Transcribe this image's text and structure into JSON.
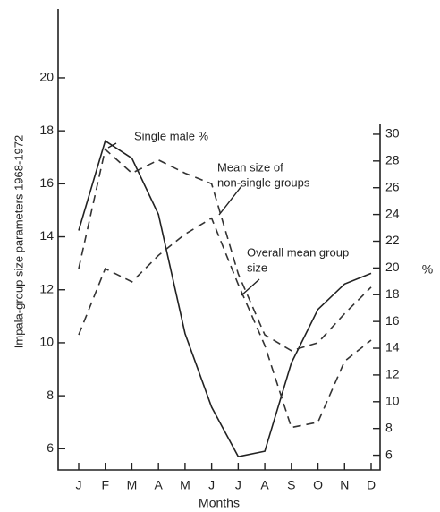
{
  "chart_data": {
    "type": "line",
    "x_label": "Months",
    "y_label": "Impala-group size parameters 1968-1972",
    "y2_label": "%",
    "categories": [
      "J",
      "F",
      "M",
      "A",
      "M",
      "J",
      "J",
      "A",
      "S",
      "O",
      "N",
      "D"
    ],
    "ylim": [
      5.2,
      22.6
    ],
    "yticks": [
      6,
      8,
      10,
      12,
      14,
      16,
      18,
      20
    ],
    "y2lim": [
      4.9,
      30.8
    ],
    "y2ticks": [
      6,
      8,
      10,
      12,
      14,
      16,
      18,
      20,
      22,
      24,
      26,
      28,
      30
    ],
    "series": [
      {
        "name": "Single male %",
        "color": "#222222",
        "dashed": false,
        "axis": "y2",
        "values": [
          22.8,
          29.5,
          28.2,
          24.0,
          15.1,
          9.6,
          5.9,
          6.3,
          12.9,
          16.9,
          18.8,
          19.6
        ]
      },
      {
        "name": "Mean size of non-single groups",
        "color": "#333333",
        "dashed": true,
        "values": [
          12.8,
          17.3,
          16.4,
          16.9,
          16.4,
          16.0,
          12.6,
          10.3,
          9.7,
          10.0,
          11.1,
          12.1
        ]
      },
      {
        "name": "Overall mean group size",
        "color": "#333333",
        "dashed": true,
        "values": [
          10.3,
          12.8,
          12.3,
          13.3,
          14.1,
          14.7,
          12.2,
          9.9,
          6.8,
          7.0,
          9.3,
          10.1
        ]
      }
    ],
    "annotations": [
      [
        "Single male %"
      ],
      [
        "Mean size of",
        "non-single groups"
      ],
      [
        "Overall mean group",
        "size"
      ]
    ]
  }
}
